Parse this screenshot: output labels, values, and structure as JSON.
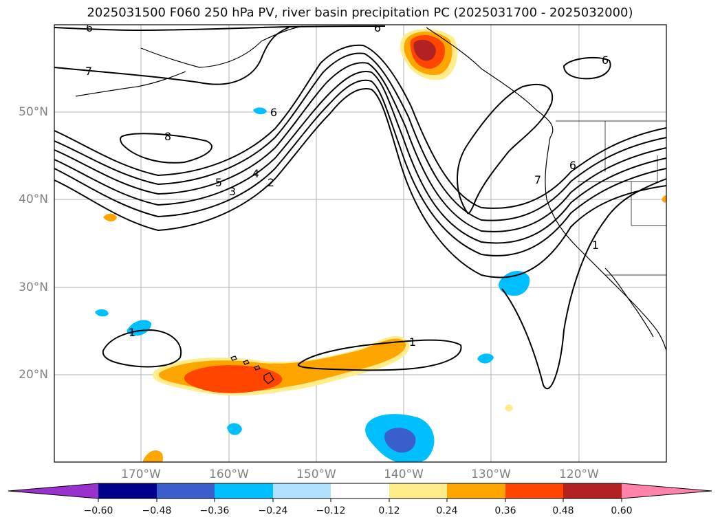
{
  "title": "2025031500 F060 250 hPa PV, river basin precipitation PC (2025031700 - 2025032000)",
  "lat_labels": [
    "50°N",
    "40°N",
    "30°N",
    "20°N"
  ],
  "lon_labels": [
    "170°W",
    "160°W",
    "150°W",
    "140°W",
    "130°W",
    "120°W"
  ],
  "pv_contour_labels": [
    "6",
    "6",
    "7",
    "6",
    "8",
    "6",
    "5",
    "4",
    "3",
    "2",
    "6",
    "7",
    "1",
    "1",
    "1"
  ],
  "colorbar": {
    "ticks": [
      "−0.60",
      "−0.48",
      "−0.36",
      "−0.24",
      "−0.12",
      "0.12",
      "0.24",
      "0.36",
      "0.48",
      "0.60"
    ],
    "colors": [
      "#9932cc",
      "#00008b",
      "#3a5fcd",
      "#00bfff",
      "#b0e2ff",
      "#ffffff",
      "#ffec8b",
      "#ffa500",
      "#ff4500",
      "#b22222",
      "#ff82ab"
    ]
  },
  "fill_colors": {
    "neg_light": "#00bfff",
    "neg_dark": "#3a5fcd",
    "pos_light": "#ffec8b",
    "pos_mid": "#ffa500",
    "pos_strong": "#ff4500",
    "pos_max": "#b22222"
  }
}
